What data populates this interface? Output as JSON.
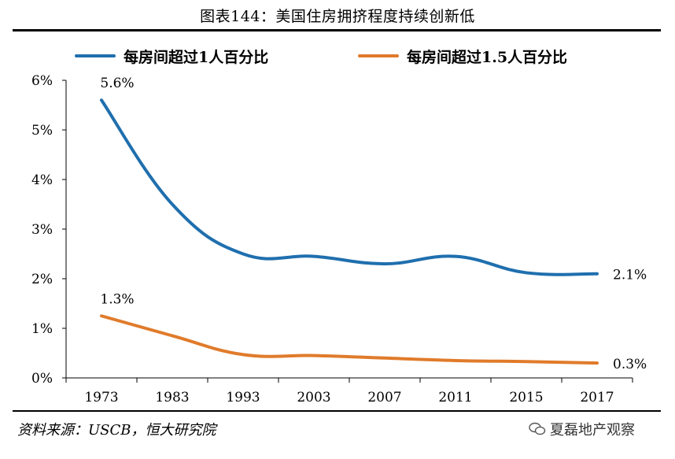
{
  "header": {
    "title": "图表144：美国住房拥挤程度持续创新低"
  },
  "footer": {
    "source": "资料来源：USCB，恒大研究院",
    "watermark": "夏磊地产观察"
  },
  "colors": {
    "series1": "#1f6fae",
    "series2": "#e07b2b"
  },
  "chart_data": {
    "type": "line",
    "title": "图表144：美国住房拥挤程度持续创新低",
    "categories": [
      "1973",
      "1983",
      "1993",
      "2003",
      "2007",
      "2011",
      "2015",
      "2017"
    ],
    "ylim": [
      0,
      6
    ],
    "yticks": [
      0,
      1,
      2,
      3,
      4,
      5,
      6
    ],
    "ytick_labels": [
      "0%",
      "1%",
      "2%",
      "3%",
      "4%",
      "5%",
      "6%"
    ],
    "xlabel": "",
    "ylabel": "",
    "legend_position": "top",
    "series": [
      {
        "name": "每房间超过1人百分比",
        "color": "#1f6fae",
        "values": [
          5.6,
          3.5,
          2.5,
          2.45,
          2.3,
          2.45,
          2.12,
          2.1
        ],
        "labels": [
          {
            "index": 0,
            "text": "5.6%"
          },
          {
            "index": 7,
            "text": "2.1%"
          }
        ]
      },
      {
        "name": "每房间超过1.5人百分比",
        "color": "#e07b2b",
        "values": [
          1.25,
          0.85,
          0.47,
          0.45,
          0.4,
          0.35,
          0.33,
          0.3
        ],
        "labels": [
          {
            "index": 0,
            "text": "1.3%"
          },
          {
            "index": 7,
            "text": "0.3%"
          }
        ]
      }
    ]
  }
}
